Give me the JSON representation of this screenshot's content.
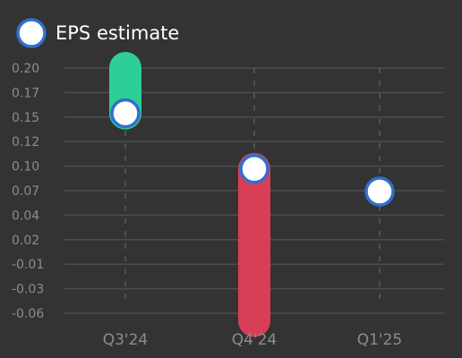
{
  "chart_data": {
    "type": "range-bar",
    "legend": {
      "label": "EPS estimate",
      "position": "top-left"
    },
    "categories": [
      "Q3'24",
      "Q4'24",
      "Q1'25"
    ],
    "series": [
      {
        "name": "EPS estimate",
        "values": [
          0.152,
          0.093,
          0.069
        ]
      }
    ],
    "actual_values": [
      0.2,
      -0.068,
      null
    ],
    "yticks": [
      "0.20",
      "0.17",
      "0.15",
      "0.12",
      "0.10",
      "0.07",
      "0.04",
      "0.02",
      "-0.01",
      "-0.03",
      "-0.06"
    ],
    "ylim": [
      -0.06,
      0.2
    ],
    "grid": true,
    "colors": {
      "beat": "#2ecf96",
      "miss": "#d83f56",
      "marker_stroke": "#2f6fd0",
      "marker_fill": "#ffffff",
      "grid": "#4d4d4d",
      "tick_text": "#8c8c8c"
    }
  }
}
